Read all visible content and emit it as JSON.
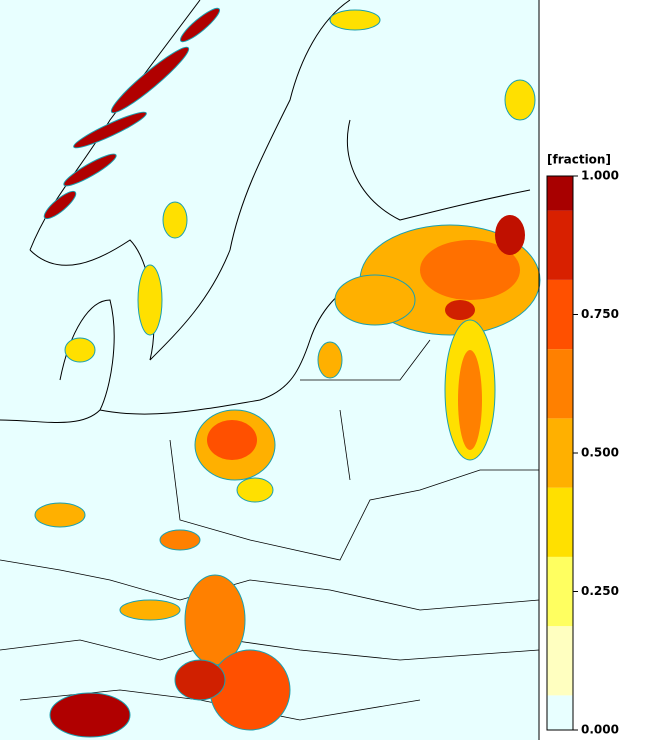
{
  "chart_data": {
    "type": "colorbar",
    "title": "[fraction]",
    "levels": [
      0,
      0.0625,
      0.1875,
      0.3125,
      0.4375,
      0.5625,
      0.6875,
      0.8125,
      0.9375,
      1
    ],
    "colors": [
      "#e8ffff",
      "#ffffc0",
      "#ffff60",
      "#ffe000",
      "#ffb000",
      "#ff8000",
      "#ff5000",
      "#d82000",
      "#a80000"
    ],
    "ylim": [
      0,
      1
    ],
    "yticks": [
      {
        "value": 0,
        "label": "0.000"
      },
      {
        "value": 0.25,
        "label": "0.250"
      },
      {
        "value": 0.5,
        "label": "0.500"
      },
      {
        "value": 0.75,
        "label": "0.750"
      },
      {
        "value": 1,
        "label": "1.000"
      }
    ]
  }
}
